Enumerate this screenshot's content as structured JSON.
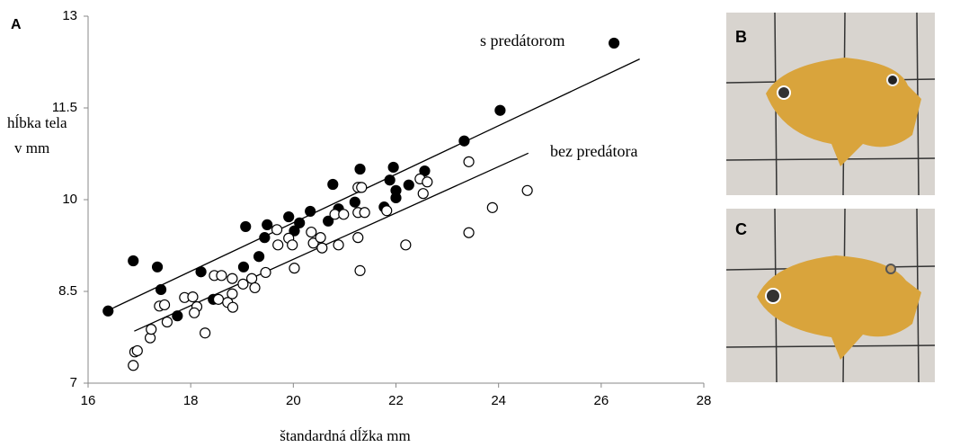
{
  "chart_data": {
    "type": "scatter",
    "panel_label": "A",
    "x_label": "štandardná dĺžka mm",
    "y_label": [
      "hĺbka tela",
      "v mm"
    ],
    "xlim": [
      16,
      28
    ],
    "xticks": [
      16,
      18,
      20,
      22,
      24,
      26,
      28
    ],
    "ylim": [
      7,
      13
    ],
    "yticks": [
      7,
      8.5,
      10,
      11.5,
      13
    ],
    "series": [
      {
        "name": "s predátorom",
        "color": "#000000",
        "marker": "filled",
        "x": [
          16.39,
          16.88,
          17.35,
          17.42,
          17.74,
          18.2,
          18.44,
          19.07,
          19.03,
          19.33,
          19.44,
          19.49,
          19.91,
          20.02,
          20.12,
          20.33,
          20.68,
          20.77,
          20.88,
          21.2,
          21.3,
          21.3,
          21.77,
          21.88,
          21.95,
          22.0,
          22.0,
          22.25,
          22.56,
          23.33,
          24.03,
          26.25
        ],
        "values": [
          8.18,
          9.0,
          8.9,
          8.53,
          8.1,
          8.82,
          8.37,
          9.56,
          8.9,
          9.07,
          9.38,
          9.59,
          9.72,
          9.49,
          9.62,
          9.81,
          9.65,
          10.25,
          9.85,
          9.96,
          10.5,
          10.2,
          9.88,
          10.32,
          10.53,
          10.15,
          10.03,
          10.24,
          10.47,
          10.96,
          11.46,
          12.56
        ],
        "line": {
          "x": [
            16.39,
            26.75
          ],
          "y": [
            8.19,
            12.3
          ]
        }
      },
      {
        "name": "bez predátora",
        "color": "#000000",
        "marker": "open",
        "x": [
          16.88,
          16.91,
          16.96,
          17.21,
          17.23,
          17.39,
          17.49,
          17.54,
          17.88,
          18.04,
          18.12,
          18.07,
          18.28,
          18.46,
          18.6,
          18.54,
          18.72,
          18.81,
          18.81,
          18.82,
          19.02,
          19.19,
          19.25,
          19.46,
          19.68,
          19.7,
          19.91,
          19.98,
          20.02,
          20.35,
          20.39,
          20.53,
          20.56,
          20.88,
          20.81,
          20.98,
          21.26,
          21.33,
          21.26,
          21.39,
          21.26,
          21.3,
          21.82,
          22.19,
          22.47,
          22.53,
          22.61,
          23.42,
          23.42,
          23.88,
          24.56
        ],
        "values": [
          7.29,
          7.51,
          7.53,
          7.74,
          7.88,
          8.26,
          8.28,
          8.0,
          8.4,
          8.41,
          8.25,
          8.15,
          7.82,
          8.76,
          8.76,
          8.37,
          8.32,
          8.71,
          8.46,
          8.24,
          8.62,
          8.71,
          8.56,
          8.81,
          9.51,
          9.26,
          9.37,
          9.26,
          8.88,
          9.47,
          9.29,
          9.38,
          9.21,
          9.26,
          9.76,
          9.76,
          10.2,
          10.2,
          9.79,
          9.79,
          9.38,
          8.84,
          9.82,
          9.26,
          10.34,
          10.1,
          10.29,
          10.62,
          9.46,
          9.87,
          10.15
        ],
        "line": {
          "x": [
            16.9,
            24.58
          ],
          "y": [
            7.85,
            10.76
          ]
        }
      }
    ]
  },
  "photos": [
    {
      "label": "B"
    },
    {
      "label": "C"
    }
  ]
}
